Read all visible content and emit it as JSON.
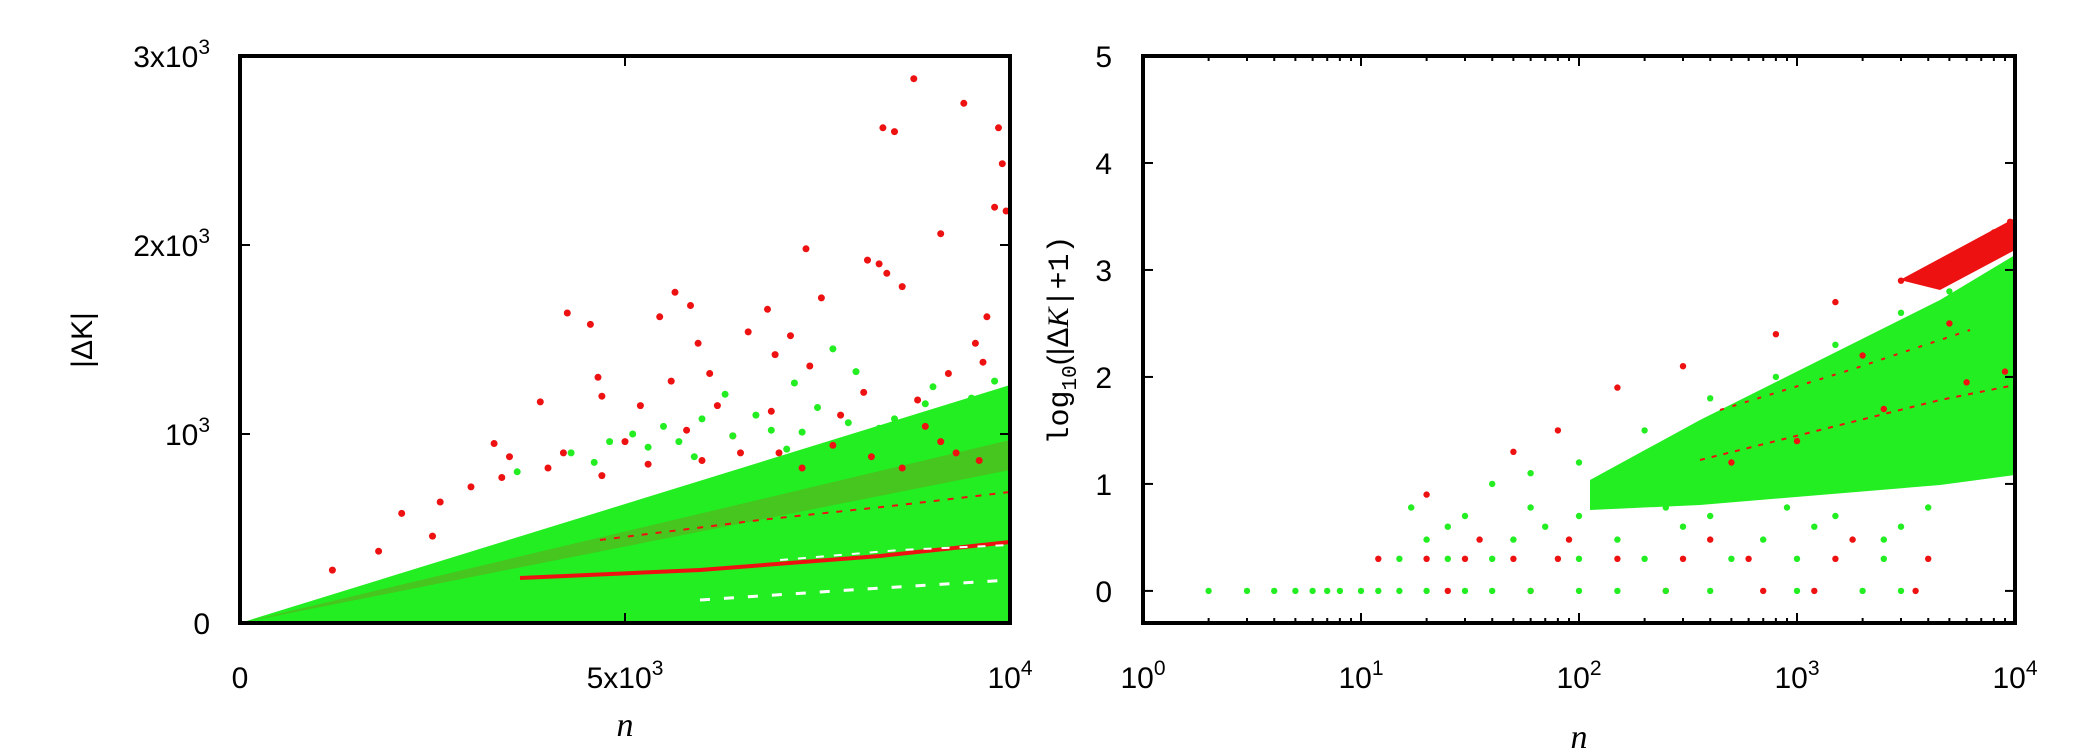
{
  "chart_data": [
    {
      "type": "scatter",
      "title": "",
      "xlabel": "n",
      "ylabel": "|ΔK|",
      "xlim": [
        0,
        10000
      ],
      "ylim": [
        0,
        3000
      ],
      "xticks": [
        {
          "value": 0,
          "base": "0",
          "exp": ""
        },
        {
          "value": 5000,
          "base": "5x10",
          "exp": "3"
        },
        {
          "value": 10000,
          "base": "10",
          "exp": "4"
        }
      ],
      "yticks": [
        {
          "value": 0,
          "base": "0",
          "exp": ""
        },
        {
          "value": 1000,
          "base": "10",
          "exp": "3"
        },
        {
          "value": 2000,
          "base": "2x10",
          "exp": "3"
        },
        {
          "value": 3000,
          "base": "3x10",
          "exp": "3"
        }
      ],
      "series": [
        {
          "color": "#ee1111",
          "values": [
            [
              8750,
              2880
            ],
            [
              9400,
              2750
            ],
            [
              8350,
              2620
            ],
            [
              8500,
              2600
            ],
            [
              9850,
              2620
            ],
            [
              9900,
              2430
            ],
            [
              9800,
              2200
            ],
            [
              9950,
              2180
            ],
            [
              9100,
              2060
            ],
            [
              7350,
              1980
            ],
            [
              8150,
              1920
            ],
            [
              8300,
              1900
            ],
            [
              8400,
              1850
            ],
            [
              8600,
              1780
            ],
            [
              5650,
              1750
            ],
            [
              5450,
              1620
            ],
            [
              5850,
              1680
            ],
            [
              4250,
              1640
            ],
            [
              4550,
              1580
            ],
            [
              6850,
              1660
            ],
            [
              7550,
              1720
            ],
            [
              9700,
              1620
            ],
            [
              9550,
              1480
            ],
            [
              7150,
              1520
            ],
            [
              6600,
              1540
            ],
            [
              5950,
              1480
            ],
            [
              6950,
              1420
            ],
            [
              7400,
              1360
            ],
            [
              6100,
              1320
            ],
            [
              5600,
              1280
            ],
            [
              4650,
              1300
            ],
            [
              3900,
              1170
            ],
            [
              4700,
              1200
            ],
            [
              5200,
              1150
            ],
            [
              6200,
              1150
            ],
            [
              6900,
              1120
            ],
            [
              7800,
              1100
            ],
            [
              8100,
              1220
            ],
            [
              8800,
              1180
            ],
            [
              9200,
              1320
            ],
            [
              9650,
              1380
            ],
            [
              3300,
              950
            ],
            [
              3500,
              880
            ],
            [
              4200,
              900
            ],
            [
              5000,
              960
            ],
            [
              5800,
              1020
            ],
            [
              6400,
              990
            ],
            [
              7000,
              900
            ],
            [
              8200,
              880
            ],
            [
              9100,
              960
            ],
            [
              2100,
              580
            ],
            [
              2600,
              640
            ],
            [
              3000,
              720
            ],
            [
              3400,
              770
            ],
            [
              4000,
              820
            ],
            [
              4700,
              780
            ],
            [
              5300,
              840
            ],
            [
              6000,
              860
            ],
            [
              7300,
              820
            ],
            [
              8600,
              820
            ],
            [
              9600,
              860
            ],
            [
              1200,
              280
            ],
            [
              1800,
              380
            ],
            [
              2500,
              460
            ],
            [
              6500,
              900
            ],
            [
              7700,
              940
            ],
            [
              8900,
              1040
            ],
            [
              9300,
              900
            ]
          ]
        },
        {
          "color": "#22ee22",
          "values": [
            [
              7700,
              1450
            ],
            [
              8000,
              1330
            ],
            [
              7200,
              1270
            ],
            [
              6300,
              1210
            ],
            [
              9000,
              1250
            ],
            [
              9800,
              1280
            ],
            [
              8900,
              1160
            ],
            [
              9500,
              1190
            ],
            [
              6700,
              1100
            ],
            [
              7500,
              1140
            ],
            [
              5500,
              1040
            ],
            [
              6000,
              1080
            ],
            [
              4800,
              960
            ],
            [
              5100,
              1000
            ],
            [
              6900,
              1020
            ],
            [
              7900,
              1060
            ],
            [
              8500,
              1080
            ],
            [
              9300,
              1100
            ],
            [
              4300,
              900
            ],
            [
              5300,
              930
            ],
            [
              5700,
              960
            ],
            [
              6400,
              990
            ],
            [
              7300,
              1010
            ],
            [
              8300,
              1030
            ],
            [
              9700,
              1000
            ],
            [
              3600,
              800
            ],
            [
              4600,
              850
            ],
            [
              5900,
              880
            ],
            [
              7100,
              920
            ],
            [
              8700,
              940
            ]
          ]
        }
      ]
    },
    {
      "type": "scatter",
      "title": "",
      "xlabel": "n",
      "ylabel_parts": [
        "log",
        "10",
        "(|Δ",
        "K",
        "|+1)"
      ],
      "xlim": [
        1,
        10000
      ],
      "xscale": "log",
      "ylim": [
        -0.3,
        5
      ],
      "xticks": [
        {
          "value": 1,
          "base": "10",
          "exp": "0"
        },
        {
          "value": 10,
          "base": "10",
          "exp": "1"
        },
        {
          "value": 100,
          "base": "10",
          "exp": "2"
        },
        {
          "value": 1000,
          "base": "10",
          "exp": "3"
        },
        {
          "value": 10000,
          "base": "10",
          "exp": "4"
        }
      ],
      "yticks": [
        "0",
        "1",
        "2",
        "3",
        "4",
        "5"
      ],
      "series": [
        {
          "color": "#ee1111",
          "values": [
            [
              12,
              0.3
            ],
            [
              20,
              0.3
            ],
            [
              30,
              0.3
            ],
            [
              50,
              0.3
            ],
            [
              80,
              0.3
            ],
            [
              150,
              0.3
            ],
            [
              300,
              0.3
            ],
            [
              600,
              0.3
            ],
            [
              1500,
              0.3
            ],
            [
              25,
              0
            ],
            [
              60,
              0
            ],
            [
              250,
              0
            ],
            [
              700,
              0
            ],
            [
              1200,
              0
            ],
            [
              3500,
              0
            ],
            [
              4000,
              0.3
            ],
            [
              35,
              0.48
            ],
            [
              90,
              0.48
            ],
            [
              400,
              0.48
            ],
            [
              1800,
              0.48
            ],
            [
              20,
              0.9
            ],
            [
              50,
              1.3
            ],
            [
              80,
              1.5
            ],
            [
              150,
              1.9
            ],
            [
              300,
              2.1
            ],
            [
              800,
              2.4
            ],
            [
              1500,
              2.7
            ],
            [
              3000,
              2.9
            ],
            [
              6000,
              3.2
            ],
            [
              9500,
              3.45
            ],
            [
              8000,
              3.35
            ],
            [
              7000,
              3.28
            ],
            [
              9000,
              3.38
            ],
            [
              4000,
              3.0
            ],
            [
              500,
              1.2
            ],
            [
              1000,
              1.4
            ],
            [
              2500,
              1.7
            ],
            [
              6000,
              1.95
            ],
            [
              9000,
              2.05
            ],
            [
              2000,
              2.2
            ],
            [
              5000,
              2.5
            ]
          ]
        },
        {
          "color": "#22ee22",
          "values": [
            [
              2,
              0
            ],
            [
              3,
              0
            ],
            [
              4,
              0
            ],
            [
              5,
              0
            ],
            [
              6,
              0
            ],
            [
              7,
              0
            ],
            [
              8,
              0
            ],
            [
              10,
              0
            ],
            [
              12,
              0
            ],
            [
              15,
              0
            ],
            [
              20,
              0
            ],
            [
              30,
              0
            ],
            [
              40,
              0
            ],
            [
              60,
              0
            ],
            [
              100,
              0
            ],
            [
              150,
              0
            ],
            [
              250,
              0
            ],
            [
              400,
              0
            ],
            [
              1000,
              0
            ],
            [
              2000,
              0
            ],
            [
              3000,
              0
            ],
            [
              15,
              0.3
            ],
            [
              25,
              0.3
            ],
            [
              40,
              0.3
            ],
            [
              100,
              0.3
            ],
            [
              200,
              0.3
            ],
            [
              500,
              0.3
            ],
            [
              1000,
              0.3
            ],
            [
              2500,
              0.3
            ],
            [
              20,
              0.48
            ],
            [
              50,
              0.48
            ],
            [
              150,
              0.48
            ],
            [
              700,
              0.48
            ],
            [
              2500,
              0.48
            ],
            [
              25,
              0.6
            ],
            [
              70,
              0.6
            ],
            [
              300,
              0.6
            ],
            [
              1200,
              0.6
            ],
            [
              3000,
              0.6
            ],
            [
              30,
              0.7
            ],
            [
              100,
              0.7
            ],
            [
              400,
              0.7
            ],
            [
              1500,
              0.7
            ],
            [
              4000,
              0.78
            ],
            [
              17,
              0.78
            ],
            [
              60,
              0.78
            ],
            [
              250,
              0.78
            ],
            [
              900,
              0.78
            ],
            [
              40,
              1.0
            ],
            [
              60,
              1.1
            ],
            [
              100,
              1.2
            ],
            [
              200,
              1.5
            ],
            [
              400,
              1.8
            ],
            [
              800,
              2.0
            ],
            [
              1500,
              2.3
            ],
            [
              3000,
              2.6
            ],
            [
              5000,
              2.8
            ],
            [
              9000,
              3.0
            ],
            [
              2000,
              1.9
            ],
            [
              5000,
              2.2
            ],
            [
              8000,
              1.5
            ],
            [
              6000,
              1.3
            ],
            [
              9500,
              1.2
            ],
            [
              9800,
              2.5
            ],
            [
              9000,
              2.7
            ],
            [
              7000,
              2.4
            ],
            [
              4000,
              1.6
            ],
            [
              1000,
              1.5
            ],
            [
              300,
              1.0
            ]
          ]
        }
      ]
    }
  ]
}
